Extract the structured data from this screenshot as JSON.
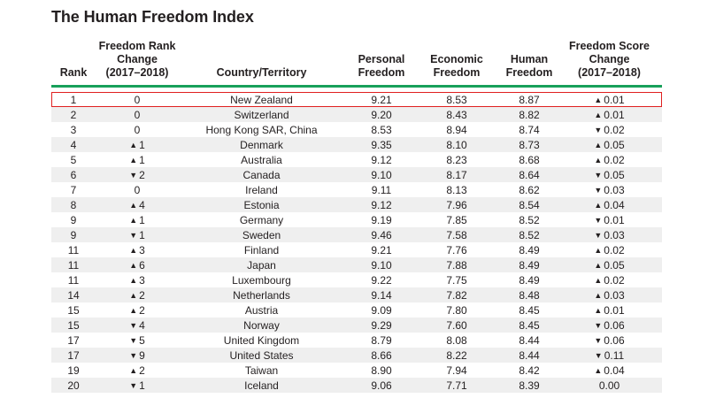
{
  "title": "The Human Freedom Index",
  "headers": {
    "rank": [
      "Rank"
    ],
    "rank_change": [
      "Freedom Rank",
      "Change",
      "(2017–2018)"
    ],
    "country": [
      "Country/Territory"
    ],
    "personal": [
      "Personal",
      "Freedom"
    ],
    "economic": [
      "Economic",
      "Freedom"
    ],
    "human": [
      "Human",
      "Freedom"
    ],
    "score_change": [
      "Freedom Score",
      "Change",
      "(2017–2018)"
    ]
  },
  "colors": {
    "rule": "#18a05a",
    "highlight": "#e02020",
    "shade": "#efefef"
  },
  "rows": [
    {
      "rank": "1",
      "rank_arrow": "",
      "rank_change": "0",
      "country": "New Zealand",
      "personal": "9.21",
      "economic": "8.53",
      "human": "8.87",
      "score_arrow": "▲",
      "score_change": "0.01"
    },
    {
      "rank": "2",
      "rank_arrow": "",
      "rank_change": "0",
      "country": "Switzerland",
      "personal": "9.20",
      "economic": "8.43",
      "human": "8.82",
      "score_arrow": "▲",
      "score_change": "0.01"
    },
    {
      "rank": "3",
      "rank_arrow": "",
      "rank_change": "0",
      "country": "Hong Kong SAR, China",
      "personal": "8.53",
      "economic": "8.94",
      "human": "8.74",
      "score_arrow": "▼",
      "score_change": "0.02"
    },
    {
      "rank": "4",
      "rank_arrow": "▲",
      "rank_change": "1",
      "country": "Denmark",
      "personal": "9.35",
      "economic": "8.10",
      "human": "8.73",
      "score_arrow": "▲",
      "score_change": "0.05"
    },
    {
      "rank": "5",
      "rank_arrow": "▲",
      "rank_change": "1",
      "country": "Australia",
      "personal": "9.12",
      "economic": "8.23",
      "human": "8.68",
      "score_arrow": "▲",
      "score_change": "0.02"
    },
    {
      "rank": "6",
      "rank_arrow": "▼",
      "rank_change": "2",
      "country": "Canada",
      "personal": "9.10",
      "economic": "8.17",
      "human": "8.64",
      "score_arrow": "▼",
      "score_change": "0.05"
    },
    {
      "rank": "7",
      "rank_arrow": "",
      "rank_change": "0",
      "country": "Ireland",
      "personal": "9.11",
      "economic": "8.13",
      "human": "8.62",
      "score_arrow": "▼",
      "score_change": "0.03"
    },
    {
      "rank": "8",
      "rank_arrow": "▲",
      "rank_change": "4",
      "country": "Estonia",
      "personal": "9.12",
      "economic": "7.96",
      "human": "8.54",
      "score_arrow": "▲",
      "score_change": "0.04"
    },
    {
      "rank": "9",
      "rank_arrow": "▲",
      "rank_change": "1",
      "country": "Germany",
      "personal": "9.19",
      "economic": "7.85",
      "human": "8.52",
      "score_arrow": "▼",
      "score_change": "0.01"
    },
    {
      "rank": "9",
      "rank_arrow": "▼",
      "rank_change": "1",
      "country": "Sweden",
      "personal": "9.46",
      "economic": "7.58",
      "human": "8.52",
      "score_arrow": "▼",
      "score_change": "0.03"
    },
    {
      "rank": "11",
      "rank_arrow": "▲",
      "rank_change": "3",
      "country": "Finland",
      "personal": "9.21",
      "economic": "7.76",
      "human": "8.49",
      "score_arrow": "▲",
      "score_change": "0.02"
    },
    {
      "rank": "11",
      "rank_arrow": "▲",
      "rank_change": "6",
      "country": "Japan",
      "personal": "9.10",
      "economic": "7.88",
      "human": "8.49",
      "score_arrow": "▲",
      "score_change": "0.05"
    },
    {
      "rank": "11",
      "rank_arrow": "▲",
      "rank_change": "3",
      "country": "Luxembourg",
      "personal": "9.22",
      "economic": "7.75",
      "human": "8.49",
      "score_arrow": "▲",
      "score_change": "0.02"
    },
    {
      "rank": "14",
      "rank_arrow": "▲",
      "rank_change": "2",
      "country": "Netherlands",
      "personal": "9.14",
      "economic": "7.82",
      "human": "8.48",
      "score_arrow": "▲",
      "score_change": "0.03"
    },
    {
      "rank": "15",
      "rank_arrow": "▲",
      "rank_change": "2",
      "country": "Austria",
      "personal": "9.09",
      "economic": "7.80",
      "human": "8.45",
      "score_arrow": "▲",
      "score_change": "0.01"
    },
    {
      "rank": "15",
      "rank_arrow": "▼",
      "rank_change": "4",
      "country": "Norway",
      "personal": "9.29",
      "economic": "7.60",
      "human": "8.45",
      "score_arrow": "▼",
      "score_change": "0.06"
    },
    {
      "rank": "17",
      "rank_arrow": "▼",
      "rank_change": "5",
      "country": "United Kingdom",
      "personal": "8.79",
      "economic": "8.08",
      "human": "8.44",
      "score_arrow": "▼",
      "score_change": "0.06"
    },
    {
      "rank": "17",
      "rank_arrow": "▼",
      "rank_change": "9",
      "country": "United States",
      "personal": "8.66",
      "economic": "8.22",
      "human": "8.44",
      "score_arrow": "▼",
      "score_change": "0.11"
    },
    {
      "rank": "19",
      "rank_arrow": "▲",
      "rank_change": "2",
      "country": "Taiwan",
      "personal": "8.90",
      "economic": "7.94",
      "human": "8.42",
      "score_arrow": "▲",
      "score_change": "0.04"
    },
    {
      "rank": "20",
      "rank_arrow": "▼",
      "rank_change": "1",
      "country": "Iceland",
      "personal": "9.06",
      "economic": "7.71",
      "human": "8.39",
      "score_arrow": "",
      "score_change": "0.00"
    }
  ]
}
